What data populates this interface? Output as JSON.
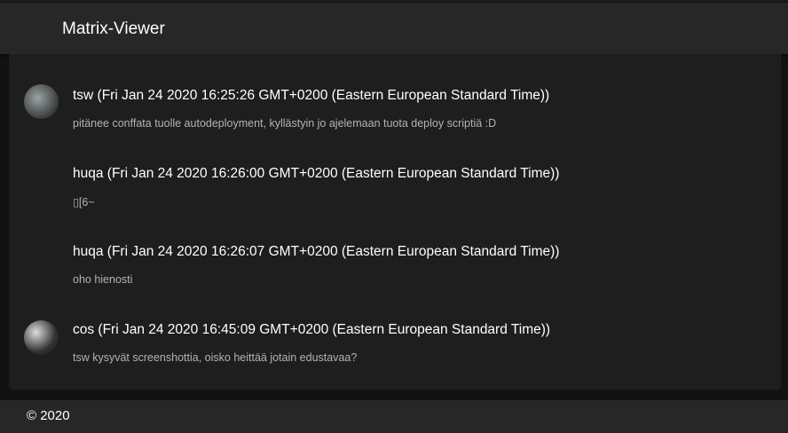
{
  "app": {
    "title": "Matrix-Viewer"
  },
  "messages": [
    {
      "author": "tsw (Fri Jan 24 2020 16:25:26 GMT+0200 (Eastern European Standard Time))",
      "body": "pitänee conffata tuolle autodeployment, kyllästyin jo ajelemaan tuota deploy scriptiä :D",
      "avatar": true
    },
    {
      "author": "huqa (Fri Jan 24 2020 16:26:00 GMT+0200 (Eastern European Standard Time))",
      "body": "▯[6~",
      "avatar": false
    },
    {
      "author": "huqa (Fri Jan 24 2020 16:26:07 GMT+0200 (Eastern European Standard Time))",
      "body": "oho hienosti",
      "avatar": false
    },
    {
      "author": "cos (Fri Jan 24 2020 16:45:09 GMT+0200 (Eastern European Standard Time))",
      "body": "tsw kysyvät screenshottia, oisko heittää jotain edustavaa?",
      "avatar": true
    }
  ],
  "footer": {
    "copyright": "© 2020"
  }
}
